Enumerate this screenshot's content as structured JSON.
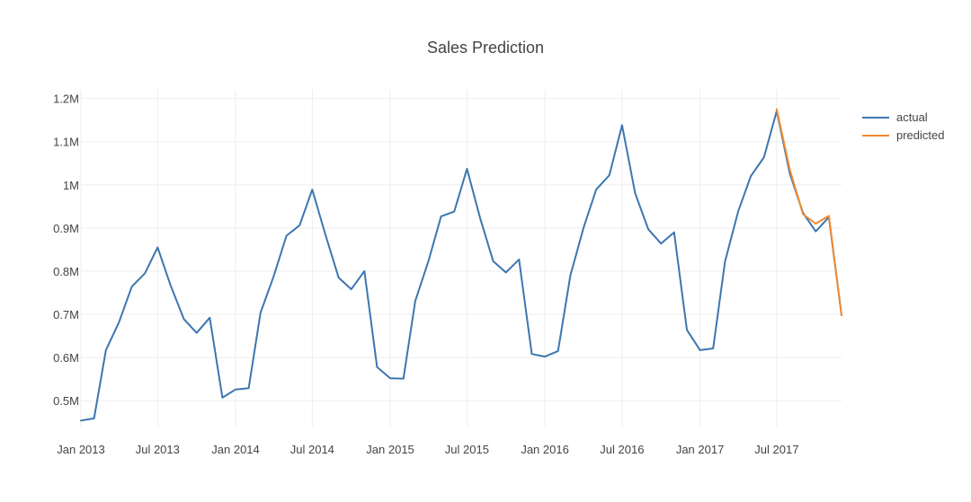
{
  "chart_data": {
    "type": "line",
    "title": "Sales Prediction",
    "xlabel": "",
    "ylabel": "",
    "grid": true,
    "legend_placement": "top-right",
    "xlim": [
      "2013-01-01",
      "2017-12-01"
    ],
    "ylim": [
      440000,
      1220000
    ],
    "x_ticks": [
      "Jan 2013",
      "Jul 2013",
      "Jan 2014",
      "Jul 2014",
      "Jan 2015",
      "Jul 2015",
      "Jan 2016",
      "Jul 2016",
      "Jan 2017",
      "Jul 2017"
    ],
    "x_tick_dates": [
      "2013-01-01",
      "2013-07-01",
      "2014-01-01",
      "2014-07-01",
      "2015-01-01",
      "2015-07-01",
      "2016-01-01",
      "2016-07-01",
      "2017-01-01",
      "2017-07-01"
    ],
    "y_ticks": [
      {
        "value": 500000,
        "label": "0.5M"
      },
      {
        "value": 600000,
        "label": "0.6M"
      },
      {
        "value": 700000,
        "label": "0.7M"
      },
      {
        "value": 800000,
        "label": "0.8M"
      },
      {
        "value": 900000,
        "label": "0.9M"
      },
      {
        "value": 1000000,
        "label": "1M"
      },
      {
        "value": 1100000,
        "label": "1.1M"
      },
      {
        "value": 1200000,
        "label": "1.2M"
      }
    ],
    "series": [
      {
        "name": "actual",
        "color": "#3d76af",
        "x": [
          "2013-01-01",
          "2013-02-01",
          "2013-03-01",
          "2013-04-01",
          "2013-05-01",
          "2013-06-01",
          "2013-07-01",
          "2013-08-01",
          "2013-09-01",
          "2013-10-01",
          "2013-11-01",
          "2013-12-01",
          "2014-01-01",
          "2014-02-01",
          "2014-03-01",
          "2014-04-01",
          "2014-05-01",
          "2014-06-01",
          "2014-07-01",
          "2014-08-01",
          "2014-09-01",
          "2014-10-01",
          "2014-11-01",
          "2014-12-01",
          "2015-01-01",
          "2015-02-01",
          "2015-03-01",
          "2015-04-01",
          "2015-05-01",
          "2015-06-01",
          "2015-07-01",
          "2015-08-01",
          "2015-09-01",
          "2015-10-01",
          "2015-11-01",
          "2015-12-01",
          "2016-01-01",
          "2016-02-01",
          "2016-03-01",
          "2016-04-01",
          "2016-05-01",
          "2016-06-01",
          "2016-07-01",
          "2016-08-01",
          "2016-09-01",
          "2016-10-01",
          "2016-11-01",
          "2016-12-01",
          "2017-01-01",
          "2017-02-01",
          "2017-03-01",
          "2017-04-01",
          "2017-05-01",
          "2017-06-01",
          "2017-07-01",
          "2017-08-01",
          "2017-09-01",
          "2017-10-01",
          "2017-11-01",
          "2017-12-01"
        ],
        "values": [
          454000,
          459000,
          617000,
          682000,
          764000,
          795000,
          855000,
          766000,
          689000,
          657000,
          692000,
          507000,
          526000,
          529000,
          704000,
          788000,
          882000,
          906000,
          989000,
          885000,
          785000,
          758000,
          800000,
          578000,
          552000,
          551000,
          731000,
          823000,
          927000,
          938000,
          1037000,
          923000,
          823000,
          797000,
          827000,
          608000,
          602000,
          615000,
          790000,
          900000,
          989000,
          1022000,
          1138000,
          980000,
          897000,
          864000,
          890000,
          664000,
          617000,
          621000,
          822000,
          938000,
          1020000,
          1064000,
          1171000,
          1026000,
          935000,
          892000,
          925000,
          698000
        ]
      },
      {
        "name": "predicted",
        "color": "#f28a30",
        "x": [
          "2017-07-01",
          "2017-08-01",
          "2017-09-01",
          "2017-10-01",
          "2017-11-01",
          "2017-12-01"
        ],
        "values": [
          1175000,
          1035000,
          932000,
          910000,
          928000,
          698000
        ]
      }
    ]
  }
}
